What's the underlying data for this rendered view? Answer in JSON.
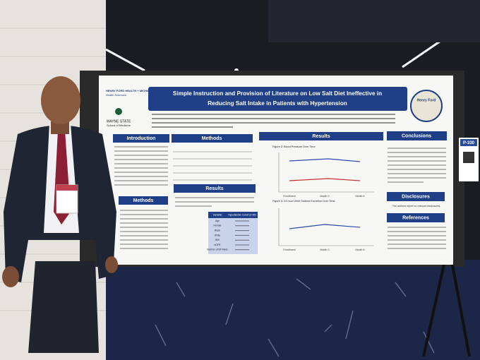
{
  "poster": {
    "logo_left": {
      "line1": "HENRY FORD HEALTH + MICHIGAN STATE UNIVERSITY",
      "line2": "Health Sciences"
    },
    "logo_wayne": {
      "line1": "WAYNE STATE",
      "line2": "School of Medicine"
    },
    "title_lines": [
      "Simple Instruction and Provision of Literature on Low Salt Diet Ineffective in",
      "Reducing Salt Intake in Patients with Hypertension"
    ],
    "right_logo": "Henry Ford",
    "sections": {
      "introduction": "Introduction",
      "methods_top": "Methods",
      "results_center": "Results",
      "methods_left": "Methods",
      "results_top": "Results",
      "conclusions": "Conclusions",
      "disclosures": "Disclosures",
      "references": "References"
    },
    "disclosures_text": "The authors report no relevant disclosures.",
    "table": {
      "header": [
        "Variable",
        "Hypertensive Cohort (n=80)"
      ],
      "rows": [
        "Age",
        "Female",
        "Black",
        "White",
        "BMI",
        "eGFR",
        "Number of BP Meds"
      ]
    },
    "figures": {
      "bp": "Figure 2: Blood Pressure Over Time",
      "sodium": "Figure 3: 24-hour Urine Sodium Excretion Over Time",
      "x_labels": [
        "Enrollment",
        "Month 3",
        "Month 6"
      ]
    }
  },
  "board_number": "P-330"
}
